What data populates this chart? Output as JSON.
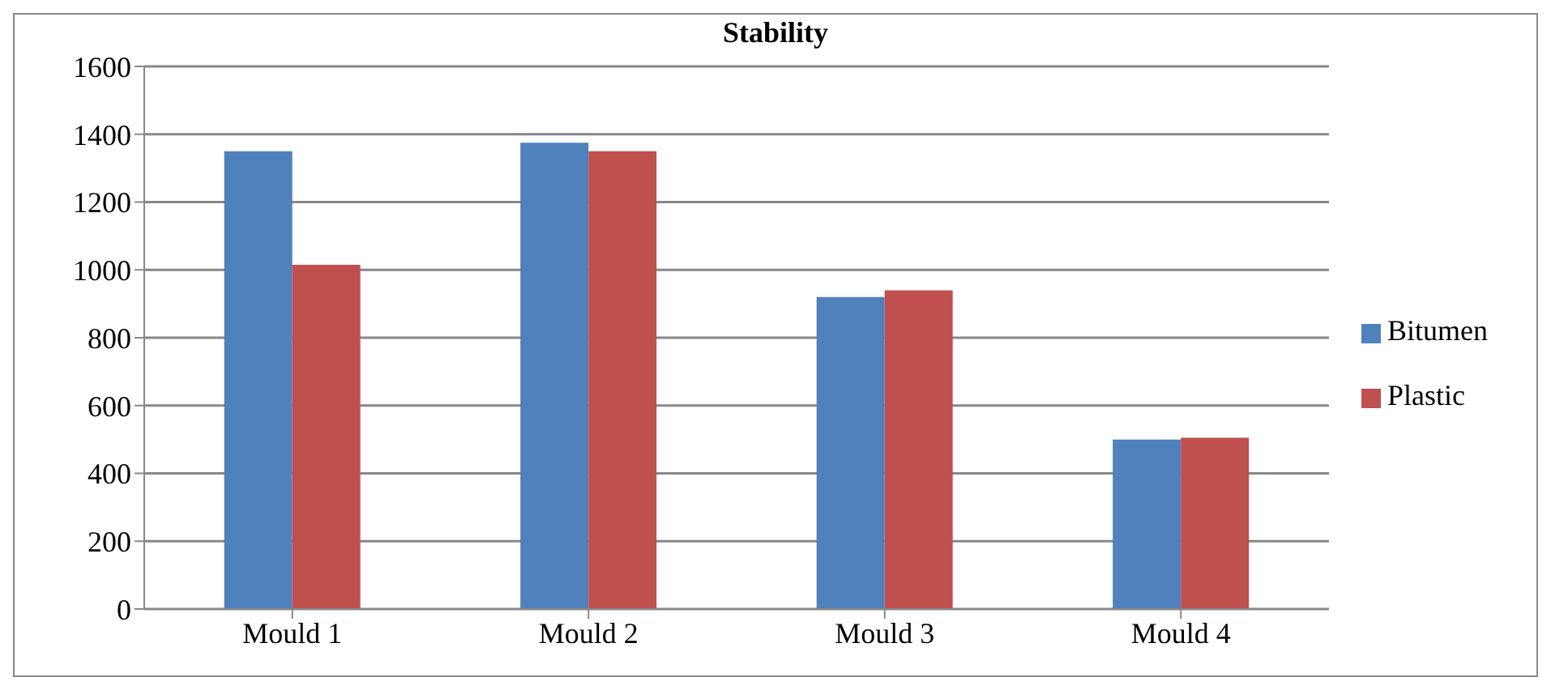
{
  "chart_data": {
    "type": "bar",
    "title": "Stability",
    "categories": [
      "Mould 1",
      "Mould 2",
      "Mould 3",
      "Mould 4"
    ],
    "series": [
      {
        "name": "Bitumen",
        "color": "#4f81bd",
        "values": [
          1350,
          1375,
          920,
          500
        ]
      },
      {
        "name": "Plastic",
        "color": "#c0504d",
        "values": [
          1015,
          1350,
          940,
          505
        ]
      }
    ],
    "ylim": [
      0,
      1600
    ],
    "yticks": [
      0,
      200,
      400,
      600,
      800,
      1000,
      1200,
      1400,
      1600
    ],
    "grid": "y",
    "legend": "right"
  }
}
